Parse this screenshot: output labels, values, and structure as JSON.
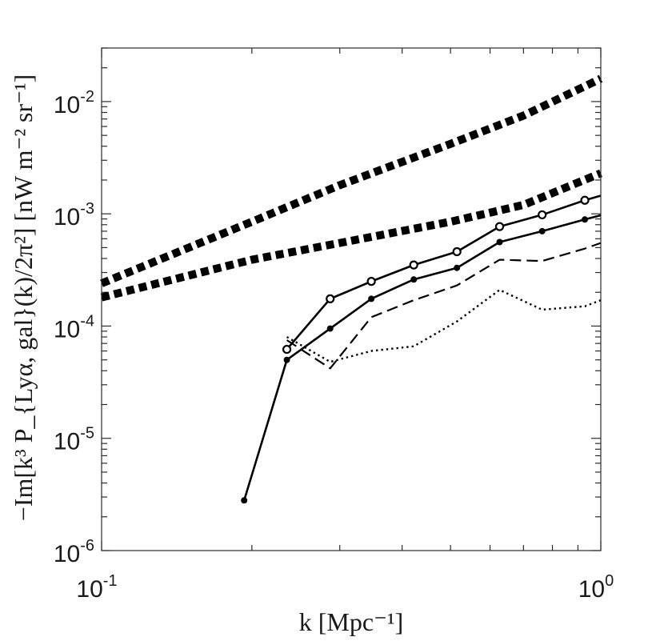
{
  "chart_data": {
    "type": "line",
    "scale": {
      "x": "log",
      "y": "log"
    },
    "xlim": [
      0.1,
      1.0
    ],
    "ylim": [
      1e-06,
      0.03
    ],
    "xlabel": "k [Mpc⁻¹]",
    "ylabel": "−Im[k³ P_{Lyα, gal}(k)/2π²] [nW m⁻² sr⁻¹]",
    "xticks": [
      {
        "value": 0.1,
        "base": "10",
        "exp": "-1"
      },
      {
        "value": 1.0,
        "base": "10",
        "exp": "0"
      }
    ],
    "yticks": [
      {
        "value": 1e-06,
        "base": "10",
        "exp": "-6"
      },
      {
        "value": 1e-05,
        "base": "10",
        "exp": "-5"
      },
      {
        "value": 0.0001,
        "base": "10",
        "exp": "-4"
      },
      {
        "value": 0.001,
        "base": "10",
        "exp": "-3"
      },
      {
        "value": 0.01,
        "base": "10",
        "exp": "-2"
      }
    ],
    "series": [
      {
        "name": "model upper (thick dotted)",
        "style": "thick-dotted",
        "x": [
          0.1,
          0.2,
          0.3,
          0.5,
          0.7,
          1.0
        ],
        "y": [
          0.00024,
          0.00085,
          0.0018,
          0.0042,
          0.0075,
          0.016
        ]
      },
      {
        "name": "model lower (thick dotted)",
        "style": "thick-dotted",
        "x": [
          0.1,
          0.2,
          0.3,
          0.5,
          0.7,
          1.0
        ],
        "y": [
          0.00018,
          0.00039,
          0.00055,
          0.00085,
          0.0012,
          0.0023
        ]
      },
      {
        "name": "open-circle markers",
        "style": "solid-open-circle",
        "x": [
          0.235,
          0.287,
          0.347,
          0.422,
          0.515,
          0.627,
          0.763,
          0.929,
          1.0
        ],
        "y": [
          6.2e-05,
          0.000175,
          0.00025,
          0.00035,
          0.00046,
          0.00077,
          0.00098,
          0.00132,
          0.00145
        ]
      },
      {
        "name": "filled markers",
        "style": "solid-filled-dot",
        "x": [
          0.193,
          0.235,
          0.287,
          0.347,
          0.422,
          0.515,
          0.627,
          0.763,
          0.929,
          1.0
        ],
        "y": [
          2.8e-06,
          5e-05,
          9.5e-05,
          0.000175,
          0.00026,
          0.00033,
          0.00056,
          0.0007,
          0.00089,
          0.00097
        ]
      },
      {
        "name": "dashed",
        "style": "dashed",
        "x": [
          0.235,
          0.287,
          0.347,
          0.422,
          0.515,
          0.627,
          0.763,
          0.929,
          1.0
        ],
        "y": [
          7.5e-05,
          4.2e-05,
          0.00012,
          0.00017,
          0.00023,
          0.00039,
          0.00038,
          0.00049,
          0.00055
        ]
      },
      {
        "name": "dotted",
        "style": "dotted",
        "x": [
          0.235,
          0.287,
          0.347,
          0.422,
          0.515,
          0.627,
          0.763,
          0.929,
          1.0
        ],
        "y": [
          8e-05,
          4.8e-05,
          6e-05,
          6.6e-05,
          0.00011,
          0.00021,
          0.00014,
          0.00015,
          0.00017
        ]
      }
    ]
  }
}
